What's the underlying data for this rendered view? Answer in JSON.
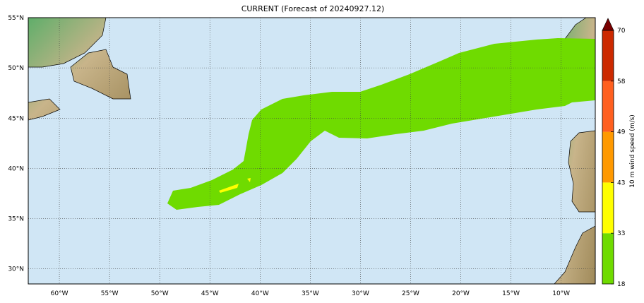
{
  "title": "CURRENT (Forecast of 20240927.12)",
  "map": {
    "lon_range": [
      -63.1,
      -6.6
    ],
    "lat_range": [
      28.5,
      55
    ],
    "lon_ticks": [
      {
        "v": -60,
        "label": "60°W"
      },
      {
        "v": -55,
        "label": "55°W"
      },
      {
        "v": -50,
        "label": "50°W"
      },
      {
        "v": -45,
        "label": "45°W"
      },
      {
        "v": -40,
        "label": "40°W"
      },
      {
        "v": -35,
        "label": "35°W"
      },
      {
        "v": -30,
        "label": "30°W"
      },
      {
        "v": -25,
        "label": "25°W"
      },
      {
        "v": -20,
        "label": "20°W"
      },
      {
        "v": -15,
        "label": "15°W"
      },
      {
        "v": -10,
        "label": "10°W"
      }
    ],
    "lat_ticks": [
      {
        "v": 55,
        "label": "55°N"
      },
      {
        "v": 50,
        "label": "50°N"
      },
      {
        "v": 45,
        "label": "45°N"
      },
      {
        "v": 40,
        "label": "40°N"
      },
      {
        "v": 35,
        "label": "35°N"
      },
      {
        "v": 30,
        "label": "30°N"
      }
    ],
    "ocean_color": "#d0e6f5"
  },
  "colorbar": {
    "label": "10 m wind speed (m/s)",
    "ticks": [
      "18",
      "33",
      "43",
      "49",
      "58",
      "70"
    ],
    "colors": [
      "#6fdb00",
      "#ffff00",
      "#ff9900",
      "#ff5f1f",
      "#cc2900"
    ],
    "extend_color": "#7a0000"
  }
}
